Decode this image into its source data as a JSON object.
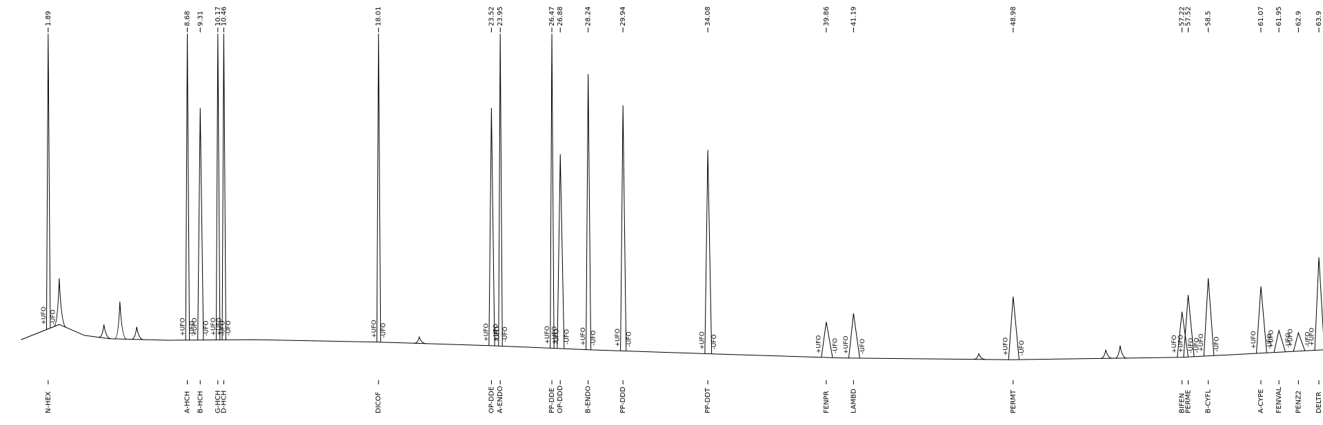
{
  "chart_data": {
    "type": "chromatogram",
    "xlim": [
      0.57,
      64.1
    ],
    "ylim": [
      0,
      100
    ],
    "retention_times": [
      1.89,
      8.68,
      9.31,
      10.17,
      10.46,
      18.01,
      23.52,
      23.95,
      26.47,
      26.88,
      28.24,
      29.94,
      34.08,
      39.86,
      41.19,
      48.98,
      57.22,
      57.52,
      58.5,
      61.07,
      61.95,
      62.9,
      63.9
    ],
    "heights": [
      100,
      100,
      77.4,
      100,
      100,
      100,
      77.4,
      100,
      100,
      63.3,
      87.7,
      78.2,
      64.6,
      12.3,
      14.9,
      20,
      15.4,
      20.5,
      25.6,
      23.1,
      9.7,
      9,
      32
    ],
    "names": [
      "N-HEX",
      "A-HCH",
      "B-HCH",
      "G-HCH",
      "D-HCH",
      "DICOF",
      "OP-DDE",
      "A-ENDO",
      "PP-DDE",
      "OP-DDD",
      "B-ENDO",
      "PP-DDD",
      "PP-DDT",
      "FENPR",
      "LAMBD",
      "PERMT",
      "BIFEN",
      "PERME",
      "B-CYFL",
      "A-CYPE",
      "FENVAL",
      "PENZ2",
      "DELTR"
    ],
    "event_labels": [
      "+UFO",
      "-UFO"
    ],
    "minor_peaks": {
      "x": [
        2.43,
        4.61,
        5.39,
        6.21,
        20.0,
        47.3,
        53.5,
        54.2
      ],
      "values": [
        25.6,
        11.5,
        18.5,
        10.8,
        7.7,
        2.6,
        3.8,
        5.1
      ]
    },
    "baseline": {
      "x": [
        0.57,
        2.43,
        3.66,
        4.89,
        7.78,
        11.89,
        17.66,
        23.42,
        28.36,
        34.13,
        40.71,
        48.95,
        57.18,
        64.1
      ],
      "values": [
        6.9,
        11.5,
        8.2,
        7.2,
        6.7,
        6.9,
        6.2,
        5.1,
        3.8,
        2.6,
        1.3,
        0.8,
        1.5,
        3.8
      ]
    }
  }
}
